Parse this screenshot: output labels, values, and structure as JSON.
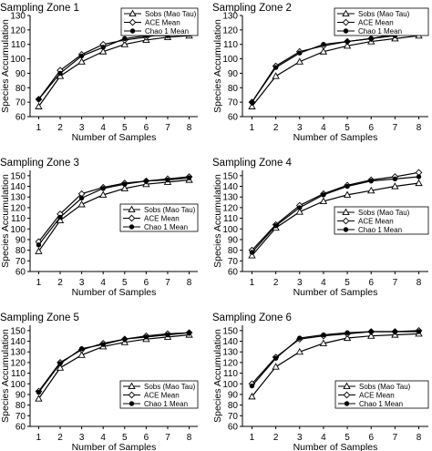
{
  "chart_data": [
    {
      "type": "line",
      "title": "Sampling Zone 1",
      "xlabel": "Number of Samples",
      "ylabel": "Species Accumulation",
      "x": [
        1,
        2,
        3,
        4,
        5,
        6,
        7,
        8
      ],
      "xlim": [
        0.6,
        8.4
      ],
      "ylim": [
        60,
        130
      ],
      "yticks": [
        60,
        70,
        80,
        90,
        100,
        110,
        120,
        130
      ],
      "legend": "top-right",
      "series": [
        {
          "name": "Sobs (Mao Tau)",
          "marker": "triangle",
          "values": [
            67,
            88,
            98,
            105,
            110,
            113,
            115,
            116
          ]
        },
        {
          "name": "ACE Mean",
          "marker": "diamond",
          "values": [
            72,
            92,
            103,
            110,
            113,
            115,
            118,
            119
          ]
        },
        {
          "name": "Chao 1 Mean",
          "marker": "circle",
          "values": [
            72,
            90,
            102,
            108,
            114,
            116,
            116,
            117
          ]
        }
      ]
    },
    {
      "type": "line",
      "title": "Sampling Zone 2",
      "xlabel": "Number of Samples",
      "ylabel": "Species Accumulation",
      "x": [
        1,
        2,
        3,
        4,
        5,
        6,
        7,
        8
      ],
      "xlim": [
        0.6,
        8.4
      ],
      "ylim": [
        60,
        130
      ],
      "yticks": [
        60,
        70,
        80,
        90,
        100,
        110,
        120,
        130
      ],
      "legend": "top-right",
      "series": [
        {
          "name": "Sobs (Mao Tau)",
          "marker": "triangle",
          "values": [
            67,
            88,
            98,
            105,
            109,
            112,
            114,
            116
          ]
        },
        {
          "name": "ACE Mean",
          "marker": "diamond",
          "values": [
            70,
            95,
            105,
            109,
            112,
            114,
            117,
            120
          ]
        },
        {
          "name": "Chao 1 Mean",
          "marker": "circle",
          "values": [
            70,
            94,
            104,
            110,
            112,
            114,
            116,
            118
          ]
        }
      ]
    },
    {
      "type": "line",
      "title": "Sampling Zone 3",
      "xlabel": "Number of Samples",
      "ylabel": "Species Accumulation",
      "x": [
        1,
        2,
        3,
        4,
        5,
        6,
        7,
        8
      ],
      "xlim": [
        0.6,
        8.4
      ],
      "ylim": [
        60,
        155
      ],
      "yticks": [
        60,
        70,
        80,
        90,
        100,
        110,
        120,
        130,
        140,
        150
      ],
      "legend": "center-right",
      "series": [
        {
          "name": "Sobs (Mao Tau)",
          "marker": "triangle",
          "values": [
            79,
            108,
            123,
            132,
            138,
            142,
            144,
            146
          ]
        },
        {
          "name": "ACE Mean",
          "marker": "diamond",
          "values": [
            88,
            114,
            133,
            139,
            143,
            145,
            147,
            149
          ]
        },
        {
          "name": "Chao 1 Mean",
          "marker": "circle",
          "values": [
            85,
            111,
            129,
            138,
            142,
            145,
            146,
            148
          ]
        }
      ]
    },
    {
      "type": "line",
      "title": "Sampling Zone 4",
      "xlabel": "Number of Samples",
      "ylabel": "Species Accumulation",
      "x": [
        1,
        2,
        3,
        4,
        5,
        6,
        7,
        8
      ],
      "xlim": [
        0.6,
        8.4
      ],
      "ylim": [
        60,
        155
      ],
      "yticks": [
        60,
        70,
        80,
        90,
        100,
        110,
        120,
        130,
        140,
        150
      ],
      "legend": "center-right",
      "series": [
        {
          "name": "Sobs (Mao Tau)",
          "marker": "triangle",
          "values": [
            75,
            101,
            116,
            126,
            132,
            136,
            140,
            143
          ]
        },
        {
          "name": "ACE Mean",
          "marker": "diamond",
          "values": [
            80,
            104,
            122,
            133,
            141,
            146,
            149,
            153
          ]
        },
        {
          "name": "Chao 1 Mean",
          "marker": "circle",
          "values": [
            78,
            103,
            120,
            132,
            140,
            145,
            147,
            149
          ]
        }
      ]
    },
    {
      "type": "line",
      "title": "Sampling Zone 5",
      "xlabel": "Number of Samples",
      "ylabel": "Species Accumulation",
      "x": [
        1,
        2,
        3,
        4,
        5,
        6,
        7,
        8
      ],
      "xlim": [
        0.6,
        8.4
      ],
      "ylim": [
        60,
        155
      ],
      "yticks": [
        60,
        70,
        80,
        90,
        100,
        110,
        120,
        130,
        140,
        150
      ],
      "legend": "bottom-right",
      "series": [
        {
          "name": "Sobs (Mao Tau)",
          "marker": "triangle",
          "values": [
            86,
            115,
            127,
            135,
            139,
            142,
            144,
            146
          ]
        },
        {
          "name": "ACE Mean",
          "marker": "diamond",
          "values": [
            93,
            120,
            132,
            138,
            142,
            145,
            147,
            148
          ]
        },
        {
          "name": "Chao 1 Mean",
          "marker": "circle",
          "values": [
            92,
            119,
            133,
            137,
            142,
            144,
            146,
            148
          ]
        }
      ]
    },
    {
      "type": "line",
      "title": "Sampling Zone 6",
      "xlabel": "Number of Samples",
      "ylabel": "Species Accumulation",
      "x": [
        1,
        2,
        3,
        4,
        5,
        6,
        7,
        8
      ],
      "xlim": [
        0.6,
        8.4
      ],
      "ylim": [
        60,
        155
      ],
      "yticks": [
        60,
        70,
        80,
        90,
        100,
        110,
        120,
        130,
        140,
        150
      ],
      "legend": "bottom-right",
      "series": [
        {
          "name": "Sobs (Mao Tau)",
          "marker": "triangle",
          "values": [
            88,
            116,
            130,
            138,
            143,
            145,
            146,
            147
          ]
        },
        {
          "name": "ACE Mean",
          "marker": "diamond",
          "values": [
            100,
            125,
            142,
            145,
            147,
            149,
            149,
            150
          ]
        },
        {
          "name": "Chao 1 Mean",
          "marker": "circle",
          "values": [
            98,
            124,
            143,
            146,
            148,
            149,
            149,
            149
          ]
        }
      ]
    }
  ]
}
